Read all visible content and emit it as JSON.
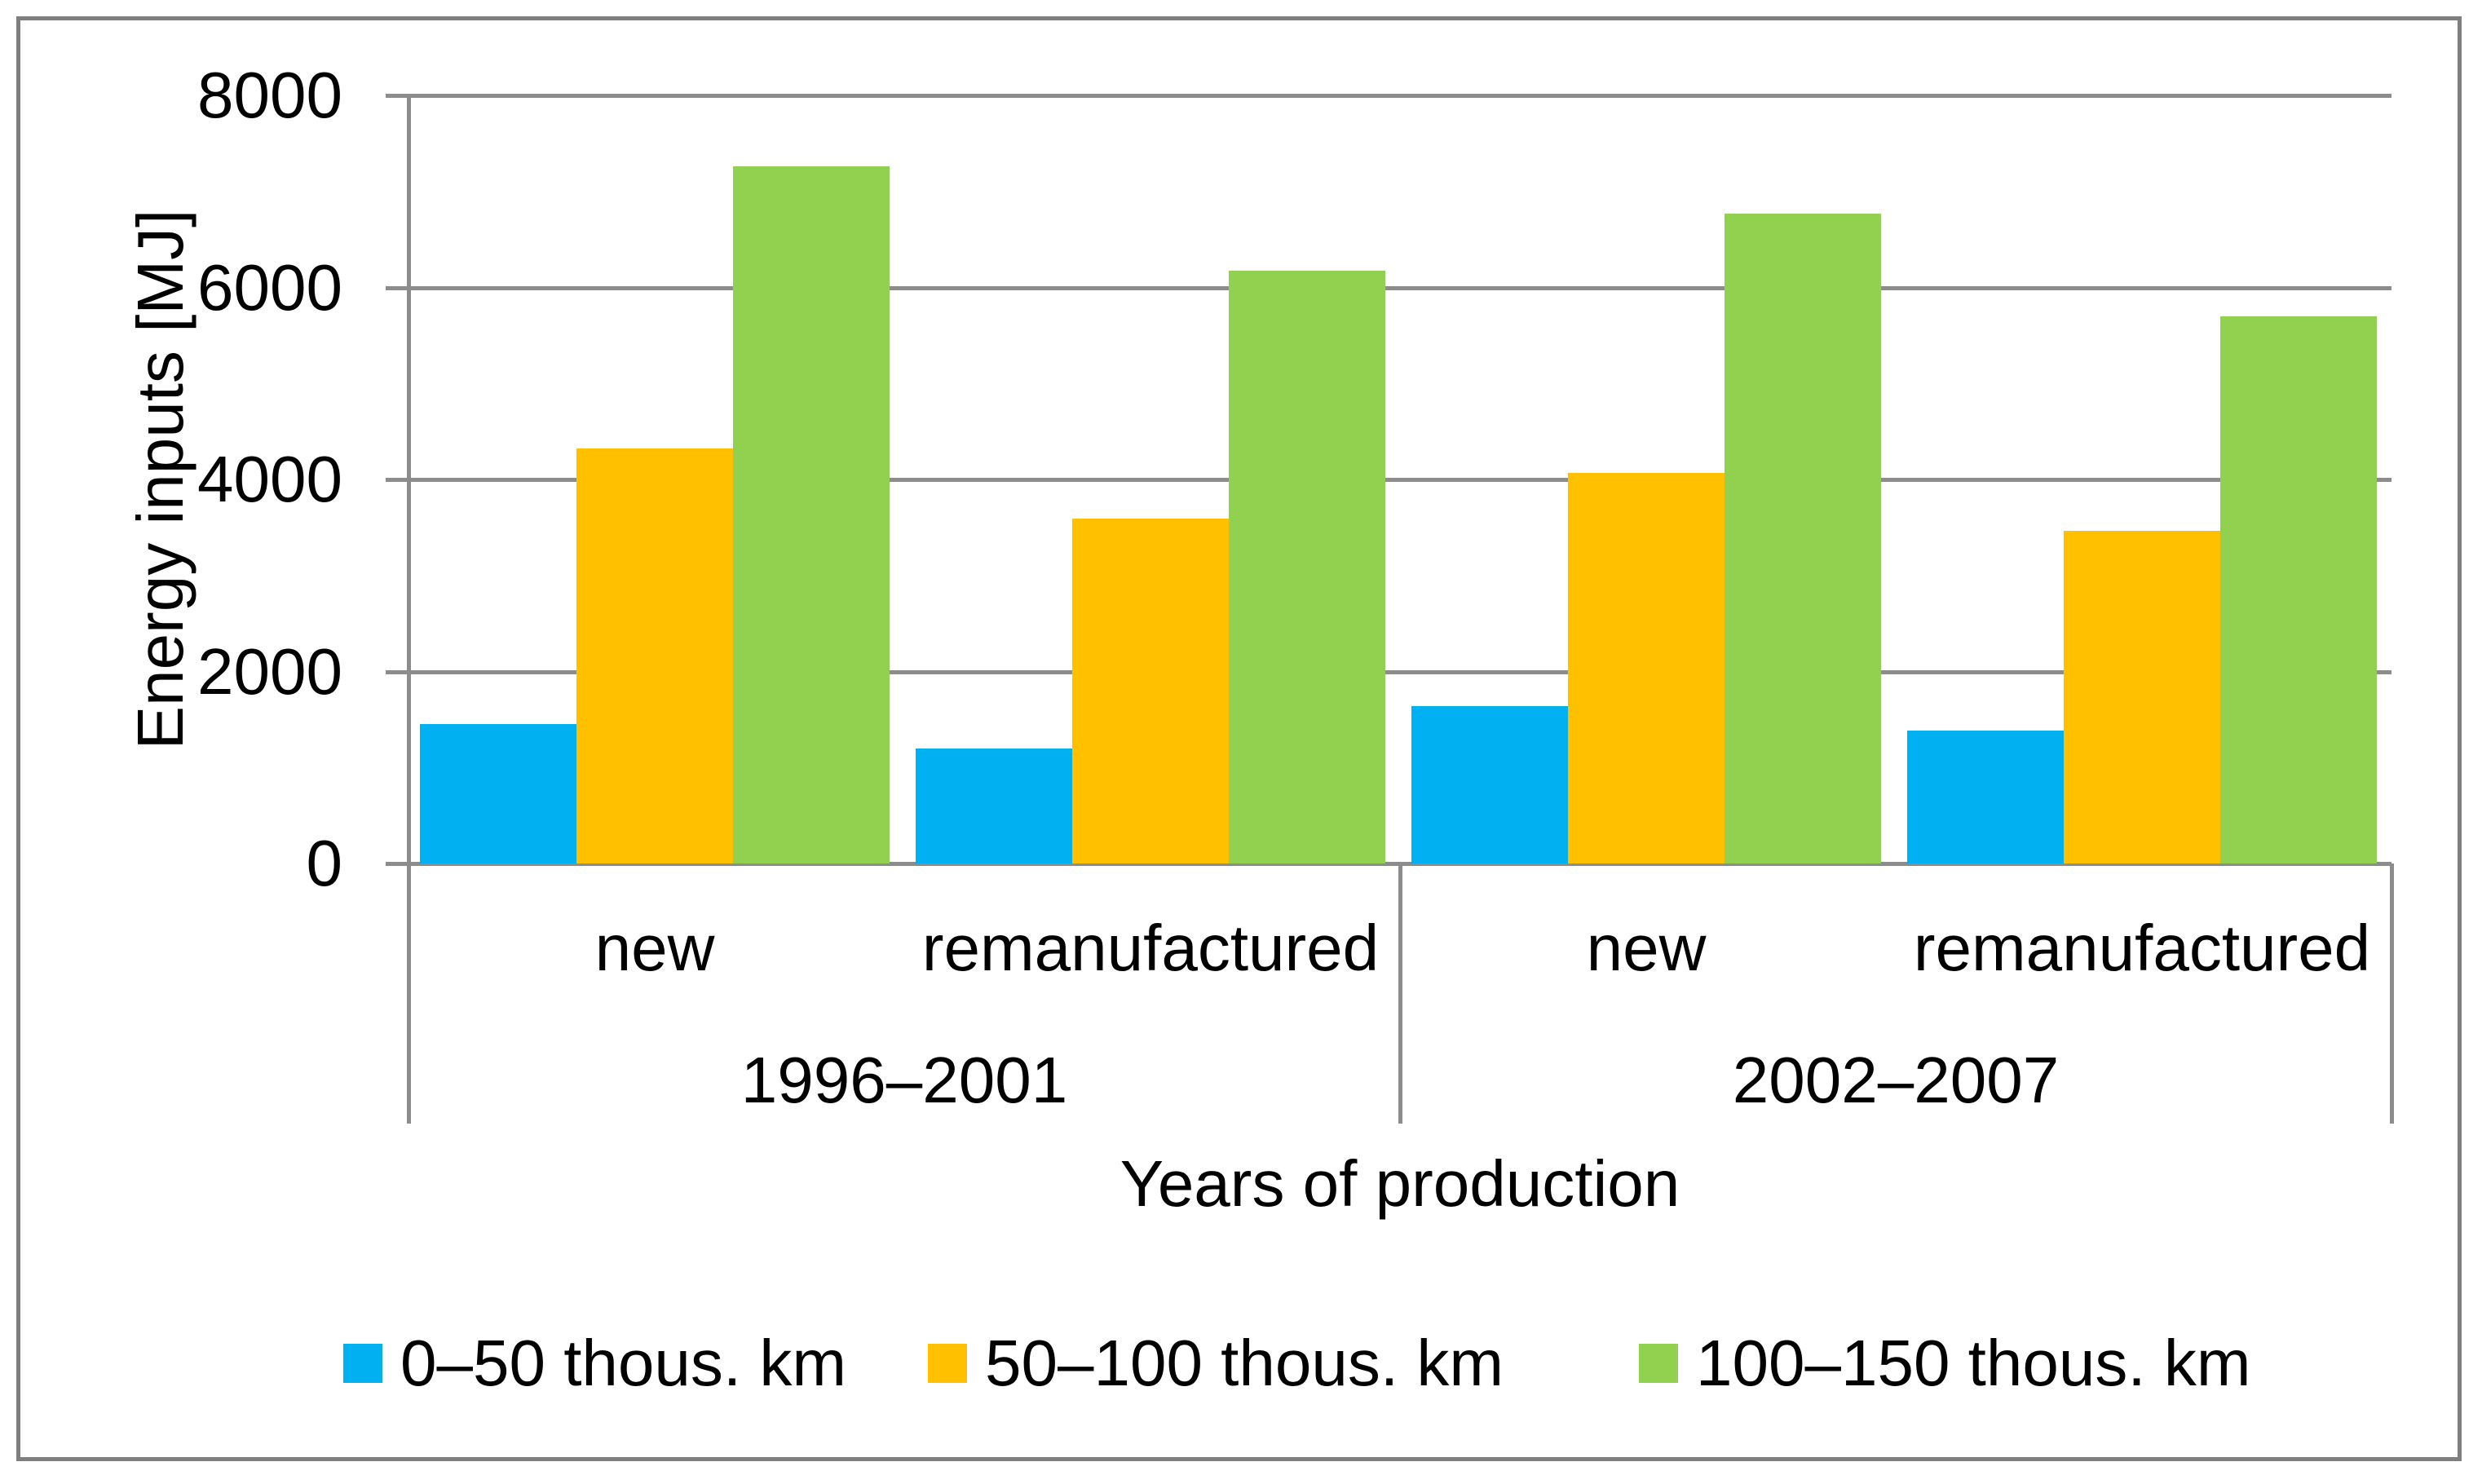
{
  "chart_data": {
    "type": "bar",
    "title": "",
    "xlabel": "Years of production",
    "ylabel": "Energy inputs [MJ]",
    "ylim": [
      0,
      8000
    ],
    "yticks": [
      8000,
      6000,
      4000,
      2000,
      0
    ],
    "grid": true,
    "legend_position": "bottom",
    "axis_color": "#8c8c8c",
    "frame_color": "#7f7f7f",
    "series": [
      {
        "name": "0–50 thous. km",
        "color": "#00b0f0"
      },
      {
        "name": "50–100 thous. km",
        "color": "#ffc000"
      },
      {
        "name": "100–150 thous. km",
        "color": "#92d050"
      }
    ],
    "groups": [
      {
        "period": "1996–2001",
        "categories": [
          {
            "label": "new",
            "values": [
              1450,
              4320,
              7265
            ]
          },
          {
            "label": "remanufactured",
            "values": [
              1200,
              3590,
              6175
            ]
          }
        ]
      },
      {
        "period": "2002–2007",
        "categories": [
          {
            "label": "new",
            "values": [
              1640,
              4070,
              6765
            ]
          },
          {
            "label": "remanufactured",
            "values": [
              1385,
              3465,
              5700
            ]
          }
        ]
      }
    ]
  }
}
